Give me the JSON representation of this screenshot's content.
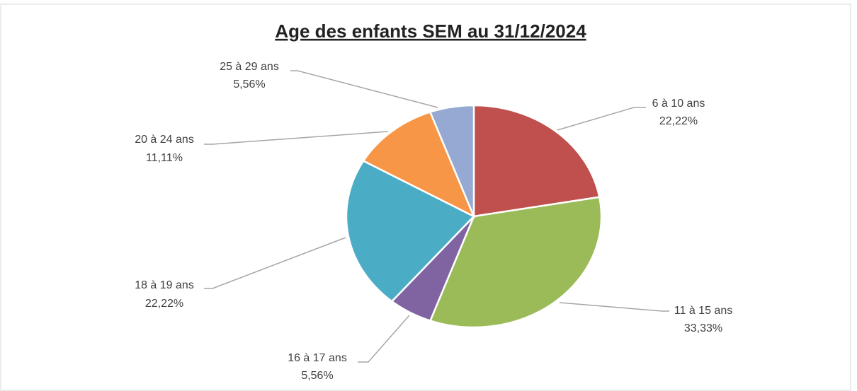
{
  "chart_data": {
    "type": "pie",
    "title": "Age des enfants SEM au 31/12/2024",
    "categories": [
      "6 à 10 ans",
      "11 à 15 ans",
      "16 à 17 ans",
      "18 à 19 ans",
      "20 à 24 ans",
      "25 à 29 ans"
    ],
    "values": [
      22.22,
      33.33,
      5.56,
      22.22,
      11.11,
      5.56
    ],
    "value_labels": [
      "22,22%",
      "33,33%",
      "5,56%",
      "22,22%",
      "11,11%",
      "5,56%"
    ],
    "colors": [
      "#c0504d",
      "#9bbb59",
      "#8064a2",
      "#4bacc6",
      "#f79646",
      "#95a9d2"
    ]
  }
}
